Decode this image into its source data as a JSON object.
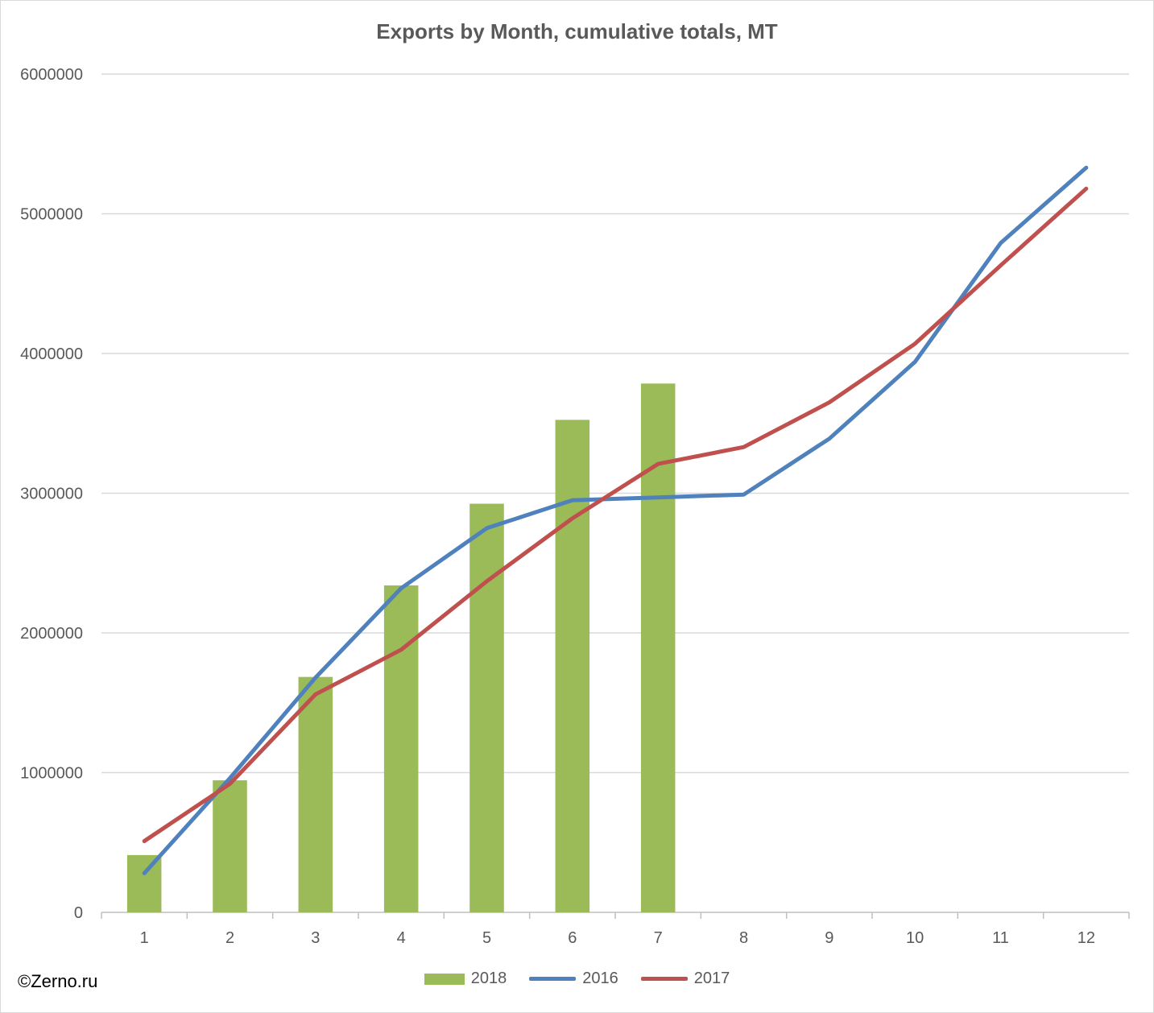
{
  "chart_data": {
    "type": "bar+line",
    "title": "Exports by Month, cumulative totals, MT",
    "categories": [
      "1",
      "2",
      "3",
      "4",
      "5",
      "6",
      "7",
      "8",
      "9",
      "10",
      "11",
      "12"
    ],
    "y_ticks": [
      "0",
      "1000000",
      "2000000",
      "3000000",
      "4000000",
      "5000000",
      "6000000"
    ],
    "ylim": [
      0,
      6000000
    ],
    "grid": true,
    "legend_position": "bottom",
    "series": [
      {
        "name": "2018",
        "kind": "bar",
        "color": "#9bbb59",
        "values": [
          410000,
          945000,
          1685000,
          2340000,
          2925000,
          3525000,
          3785000,
          null,
          null,
          null,
          null,
          null
        ]
      },
      {
        "name": "2016",
        "kind": "line",
        "color": "#4f81bd",
        "values": [
          280000,
          960000,
          1680000,
          2320000,
          2750000,
          2950000,
          2970000,
          2990000,
          3390000,
          3940000,
          4790000,
          5330000
        ]
      },
      {
        "name": "2017",
        "kind": "line",
        "color": "#c0504d",
        "values": [
          510000,
          920000,
          1560000,
          1880000,
          2370000,
          2820000,
          3210000,
          3330000,
          3650000,
          4070000,
          4630000,
          5180000
        ]
      }
    ]
  },
  "footer": {
    "copyright": "©Zerno.ru"
  }
}
